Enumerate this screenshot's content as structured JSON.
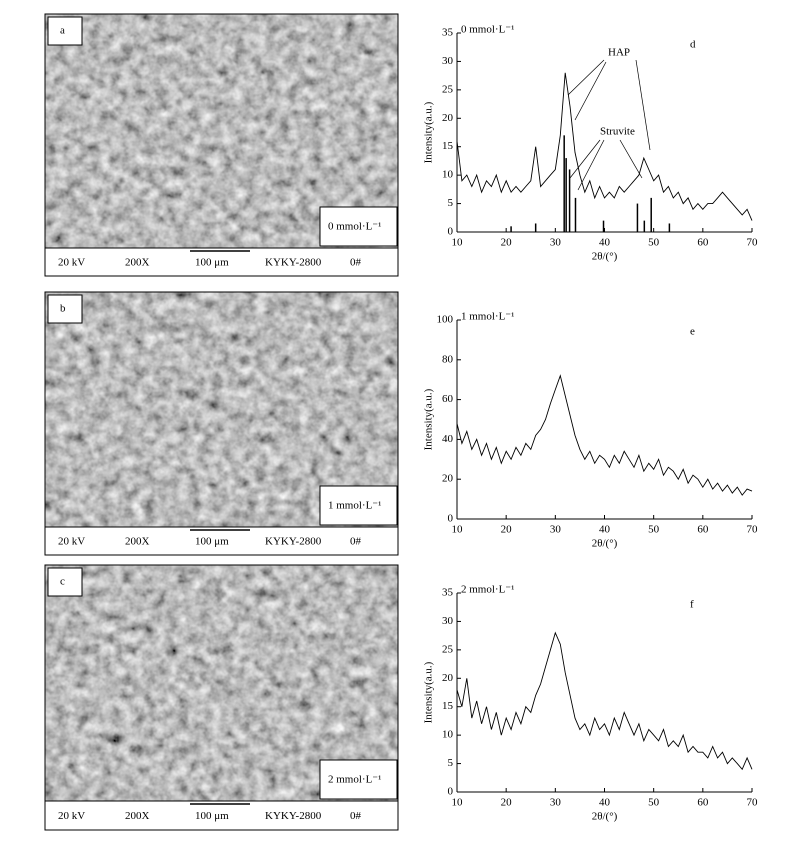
{
  "panels": [
    {
      "label": "a",
      "condition": "0 mmol·L⁻¹",
      "info": [
        "20 kV",
        "200X",
        "100 μm",
        "KYKY-2800",
        "0#"
      ]
    },
    {
      "label": "b",
      "condition": "1 mmol·L⁻¹",
      "info": [
        "20 kV",
        "200X",
        "100 μm",
        "KYKY-2800",
        "0#"
      ]
    },
    {
      "label": "c",
      "condition": "2 mmol·L⁻¹",
      "info": [
        "20 kV",
        "200X",
        "100 μm",
        "KYKY-2800",
        "0#"
      ]
    }
  ],
  "chart_data": [
    {
      "type": "line",
      "panel_label": "d",
      "condition": "0 mmol·L⁻¹",
      "labels": [
        "HAP",
        "Struvite"
      ],
      "xlabel": "2θ/(°)",
      "ylabel": "Intensity(a.u.)",
      "color": "#000000",
      "x": [
        10,
        11,
        12,
        13,
        14,
        15,
        16,
        17,
        18,
        19,
        20,
        21,
        22,
        23,
        24,
        25,
        26,
        27,
        28,
        29,
        30,
        31,
        32,
        33,
        34,
        35,
        36,
        37,
        38,
        39,
        40,
        41,
        42,
        43,
        44,
        45,
        46,
        47,
        48,
        49,
        50,
        51,
        52,
        53,
        54,
        55,
        56,
        57,
        58,
        59,
        60,
        61,
        62,
        63,
        64,
        65,
        66,
        67,
        68,
        69,
        70
      ],
      "values": [
        16,
        9,
        10,
        8,
        10,
        7,
        9,
        8,
        10,
        7,
        9,
        7,
        8,
        7,
        8,
        9,
        15,
        8,
        9,
        10,
        11,
        17,
        28,
        22,
        14,
        10,
        7,
        9,
        6,
        8,
        6,
        7,
        6,
        8,
        7,
        8,
        9,
        10,
        13,
        11,
        9,
        10,
        7,
        8,
        6,
        7,
        5,
        6,
        4,
        5,
        4,
        5,
        5,
        6,
        7,
        6,
        5,
        4,
        3,
        4,
        2
      ],
      "reference_peaks": {
        "x": [
          21,
          26,
          31.8,
          32.2,
          32.9,
          34.1,
          39.8,
          46.7,
          48.1,
          49.5,
          53.2
        ],
        "values": [
          1,
          1.5,
          17,
          13,
          11,
          6,
          2,
          5,
          2,
          6,
          1.5
        ]
      },
      "xlim": [
        10,
        70
      ],
      "xticks": [
        10,
        20,
        30,
        40,
        50,
        60,
        70
      ],
      "ylim": [
        0,
        35
      ],
      "yticks": [
        0,
        5,
        10,
        15,
        20,
        25,
        30,
        35
      ]
    },
    {
      "type": "line",
      "panel_label": "e",
      "condition": "1 mmol·L⁻¹",
      "xlabel": "2θ/(°)",
      "ylabel": "Intensity(a.u.)",
      "color": "#000000",
      "x": [
        10,
        11,
        12,
        13,
        14,
        15,
        16,
        17,
        18,
        19,
        20,
        21,
        22,
        23,
        24,
        25,
        26,
        27,
        28,
        29,
        30,
        31,
        32,
        33,
        34,
        35,
        36,
        37,
        38,
        39,
        40,
        41,
        42,
        43,
        44,
        45,
        46,
        47,
        48,
        49,
        50,
        51,
        52,
        53,
        54,
        55,
        56,
        57,
        58,
        59,
        60,
        61,
        62,
        63,
        64,
        65,
        66,
        67,
        68,
        69,
        70
      ],
      "values": [
        48,
        38,
        44,
        35,
        40,
        32,
        38,
        30,
        36,
        28,
        34,
        30,
        36,
        32,
        38,
        35,
        42,
        45,
        50,
        58,
        65,
        72,
        62,
        52,
        42,
        35,
        30,
        34,
        28,
        32,
        30,
        26,
        32,
        28,
        34,
        30,
        26,
        32,
        24,
        28,
        25,
        30,
        22,
        26,
        24,
        20,
        25,
        18,
        22,
        20,
        16,
        20,
        15,
        18,
        14,
        17,
        13,
        16,
        12,
        15,
        14
      ],
      "xlim": [
        10,
        70
      ],
      "xticks": [
        10,
        20,
        30,
        40,
        50,
        60,
        70
      ],
      "ylim": [
        0,
        100
      ],
      "yticks": [
        0,
        20,
        40,
        60,
        80,
        100
      ]
    },
    {
      "type": "line",
      "panel_label": "f",
      "condition": "2 mmol·L⁻¹",
      "xlabel": "2θ/(°)",
      "ylabel": "Intensity(a.u.)",
      "color": "#000000",
      "x": [
        10,
        11,
        12,
        13,
        14,
        15,
        16,
        17,
        18,
        19,
        20,
        21,
        22,
        23,
        24,
        25,
        26,
        27,
        28,
        29,
        30,
        31,
        32,
        33,
        34,
        35,
        36,
        37,
        38,
        39,
        40,
        41,
        42,
        43,
        44,
        45,
        46,
        47,
        48,
        49,
        50,
        51,
        52,
        53,
        54,
        55,
        56,
        57,
        58,
        59,
        60,
        61,
        62,
        63,
        64,
        65,
        66,
        67,
        68,
        69,
        70
      ],
      "values": [
        18,
        15,
        20,
        13,
        16,
        12,
        15,
        11,
        14,
        10,
        13,
        11,
        14,
        12,
        15,
        14,
        17,
        19,
        22,
        25,
        28,
        26,
        21,
        17,
        13,
        11,
        12,
        10,
        13,
        11,
        12,
        10,
        13,
        11,
        14,
        12,
        10,
        12,
        9,
        11,
        10,
        9,
        11,
        8,
        9,
        8,
        10,
        7,
        8,
        7,
        7,
        6,
        8,
        6,
        7,
        5,
        6,
        5,
        4,
        6,
        4
      ],
      "xlim": [
        10,
        70
      ],
      "xticks": [
        10,
        20,
        30,
        40,
        50,
        60,
        70
      ],
      "ylim": [
        0,
        35
      ],
      "yticks": [
        0,
        5,
        10,
        15,
        20,
        25,
        30,
        35
      ]
    }
  ]
}
